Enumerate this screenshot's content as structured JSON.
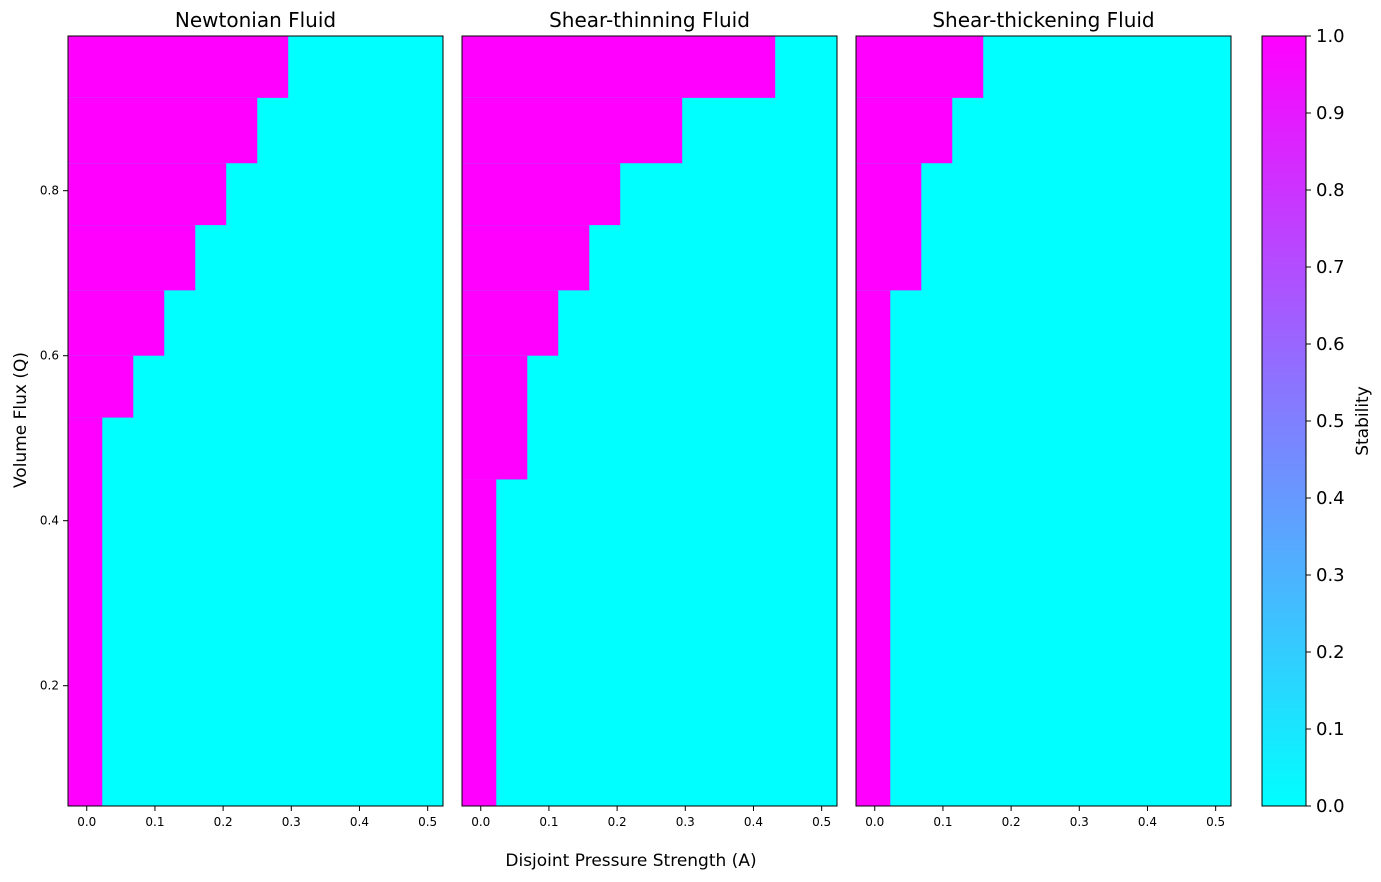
{
  "figure": {
    "shared_xlabel": "Disjoint Pressure Strength (A)",
    "shared_ylabel": "Volume Flux (Q)"
  },
  "colorbar": {
    "label": "Stability",
    "ticks": [
      "0.0",
      "0.1",
      "0.2",
      "0.3",
      "0.4",
      "0.5",
      "0.6",
      "0.7",
      "0.8",
      "0.9",
      "1.0"
    ],
    "range": [
      0.0,
      1.0
    ],
    "colormap": "cool",
    "color_low": "#00ffff",
    "color_high": "#ff00ff"
  },
  "chart_data": [
    {
      "type": "heatmap",
      "title": "Newtonian Fluid",
      "xlabel": "Disjoint Pressure Strength (A)",
      "ylabel": "Volume Flux (Q)",
      "xlim": [
        -0.0275,
        0.5225
      ],
      "ylim": [
        0.0542,
        0.9875
      ],
      "x_ticks": [
        "0.0",
        "0.1",
        "0.2",
        "0.3",
        "0.4",
        "0.5"
      ],
      "y_ticks": [
        "0.2",
        "0.4",
        "0.6",
        "0.8"
      ],
      "x_centers": [
        0.0,
        0.0455,
        0.0909,
        0.1364,
        0.1818,
        0.2273,
        0.2727,
        0.3182,
        0.3636,
        0.4091,
        0.4545,
        0.5
      ],
      "x_step": 0.0455,
      "q_rows": [
        0.1,
        0.1889,
        0.2778,
        0.3667,
        0.4556,
        0.5444,
        0.6333,
        0.7222,
        0.8111,
        0.9,
        0.9875
      ],
      "q_row_edges": [
        0.0542,
        0.525,
        0.6,
        0.6792,
        0.7583,
        0.8333,
        0.9125,
        0.9875
      ],
      "stable_until_x": [
        0.0,
        0.0455,
        0.0909,
        0.1364,
        0.1818,
        0.2273,
        0.2727
      ],
      "values_note_unit": "stability: 1 = magenta, 0 = cyan",
      "grid": false
    },
    {
      "type": "heatmap",
      "title": "Shear-thinning Fluid",
      "xlabel": "Disjoint Pressure Strength (A)",
      "ylabel": "",
      "xlim": [
        -0.0275,
        0.5225
      ],
      "ylim": [
        0.0542,
        0.9875
      ],
      "x_ticks": [
        "0.0",
        "0.1",
        "0.2",
        "0.3",
        "0.4",
        "0.5"
      ],
      "y_ticks": [],
      "x_centers": [
        0.0,
        0.0455,
        0.0909,
        0.1364,
        0.1818,
        0.2273,
        0.2727,
        0.3182,
        0.3636,
        0.4091,
        0.4545,
        0.5
      ],
      "x_step": 0.0455,
      "q_row_edges": [
        0.0542,
        0.45,
        0.6,
        0.6792,
        0.7583,
        0.8333,
        0.9125,
        0.9875
      ],
      "stable_until_x": [
        0.0,
        0.0455,
        0.0909,
        0.1364,
        0.1818,
        0.2727,
        0.4091
      ],
      "grid": false
    },
    {
      "type": "heatmap",
      "title": "Shear-thickening Fluid",
      "xlabel": "Disjoint Pressure Strength (A)",
      "ylabel": "",
      "xlim": [
        -0.0275,
        0.5225
      ],
      "ylim": [
        0.0542,
        0.9875
      ],
      "x_ticks": [
        "0.0",
        "0.1",
        "0.2",
        "0.3",
        "0.4",
        "0.5"
      ],
      "y_ticks": [],
      "x_centers": [
        0.0,
        0.0455,
        0.0909,
        0.1364,
        0.1818,
        0.2273,
        0.2727,
        0.3182,
        0.3636,
        0.4091,
        0.4545,
        0.5
      ],
      "x_step": 0.0455,
      "q_row_edges": [
        0.0542,
        0.6792,
        0.8333,
        0.9125,
        0.9875
      ],
      "stable_until_x": [
        0.0,
        0.0455,
        0.0909,
        0.1364
      ],
      "grid": false
    }
  ]
}
